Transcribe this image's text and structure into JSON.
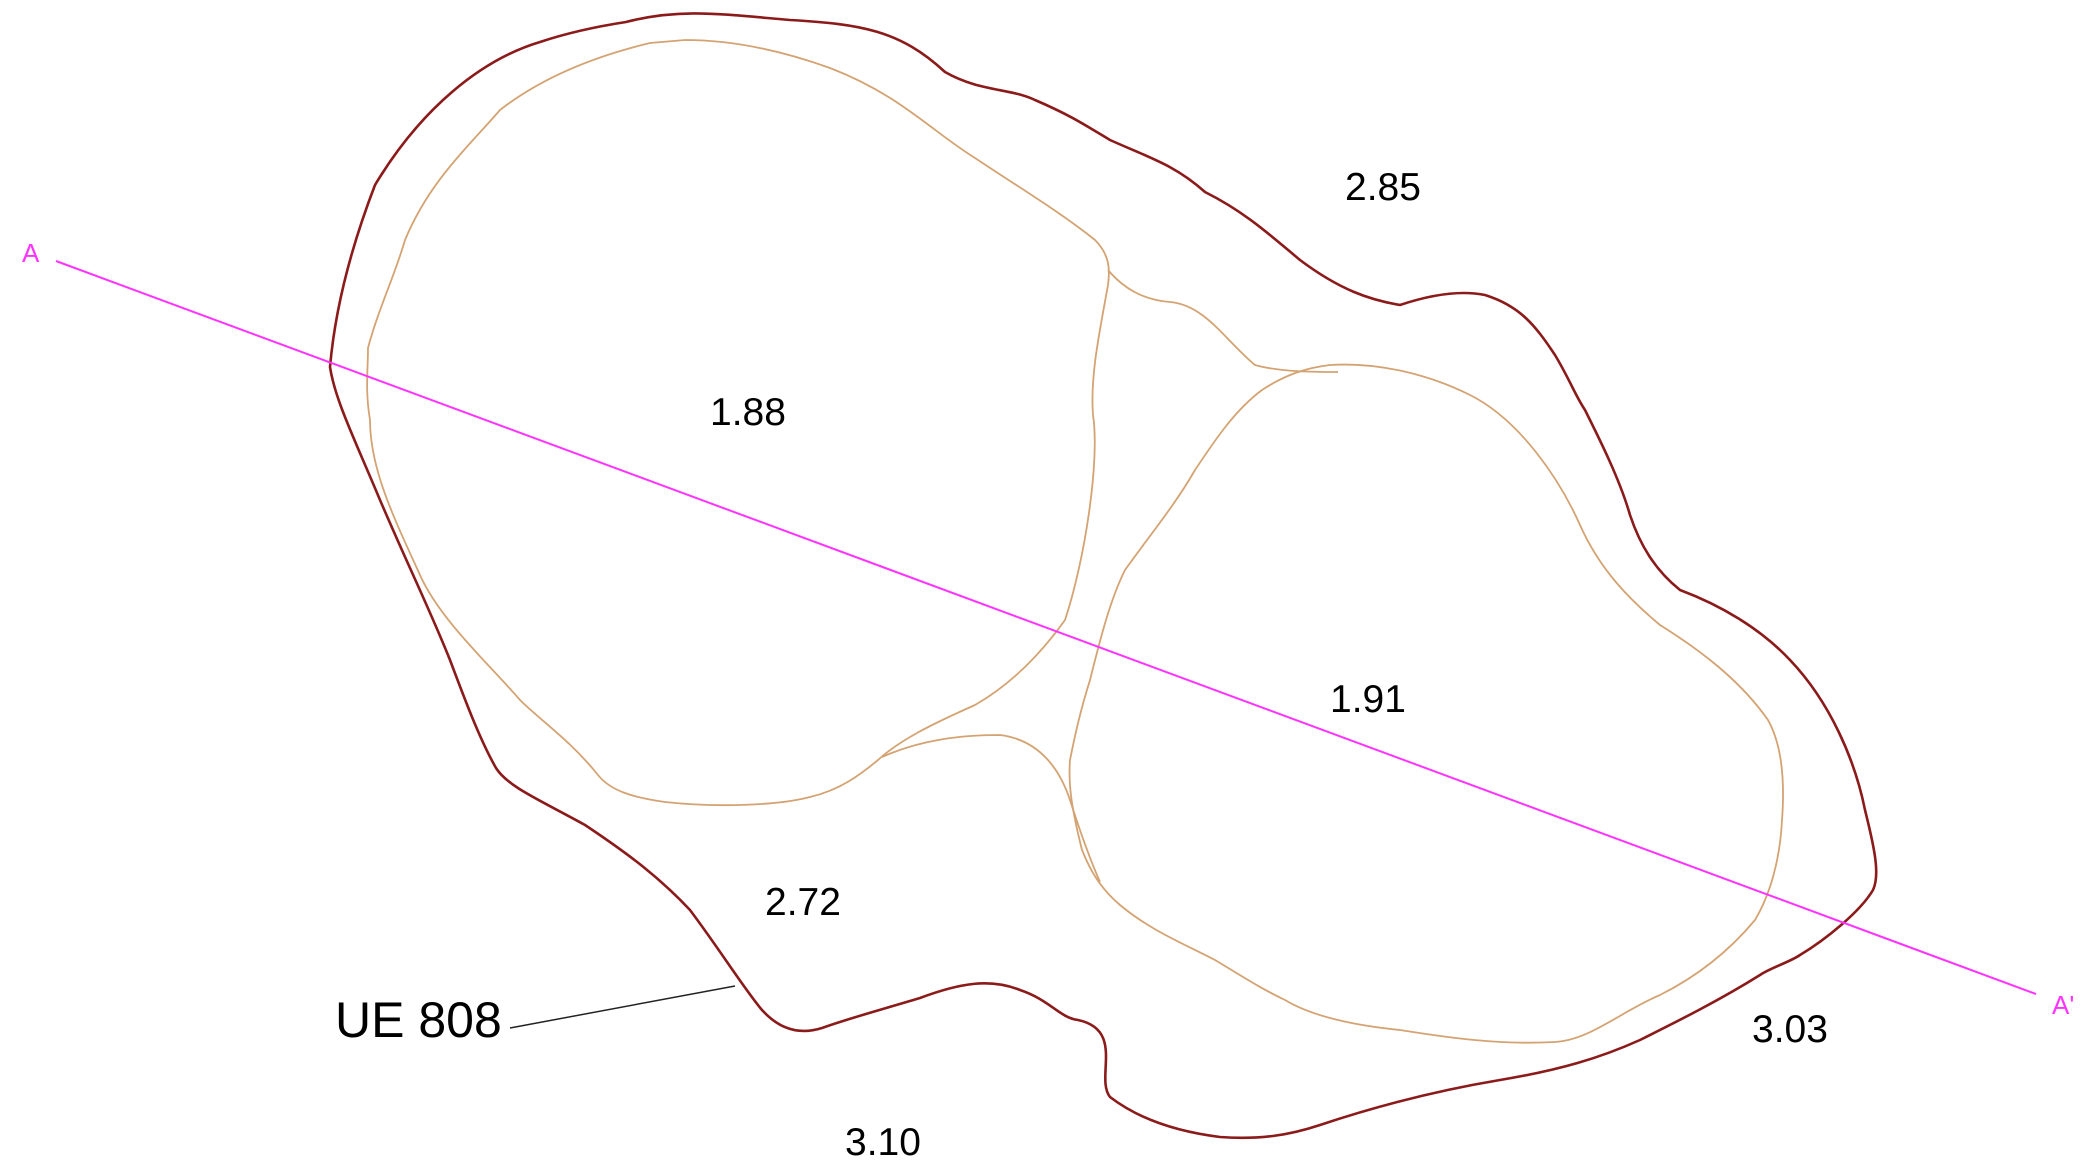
{
  "colors": {
    "outer_outline": "#8b1a1a",
    "inner_outline": "#d4a373",
    "section_line": "#ff33ff",
    "leader": "#222222",
    "text": "#000000"
  },
  "section": {
    "start_label": "A",
    "end_label": "A'"
  },
  "unit_label": "UE 808",
  "elevations": {
    "top_right": "2.85",
    "left_pit": "1.88",
    "right_pit": "1.91",
    "bottom_left": "2.72",
    "bottom_right": "3.03",
    "bottom": "3.10"
  }
}
